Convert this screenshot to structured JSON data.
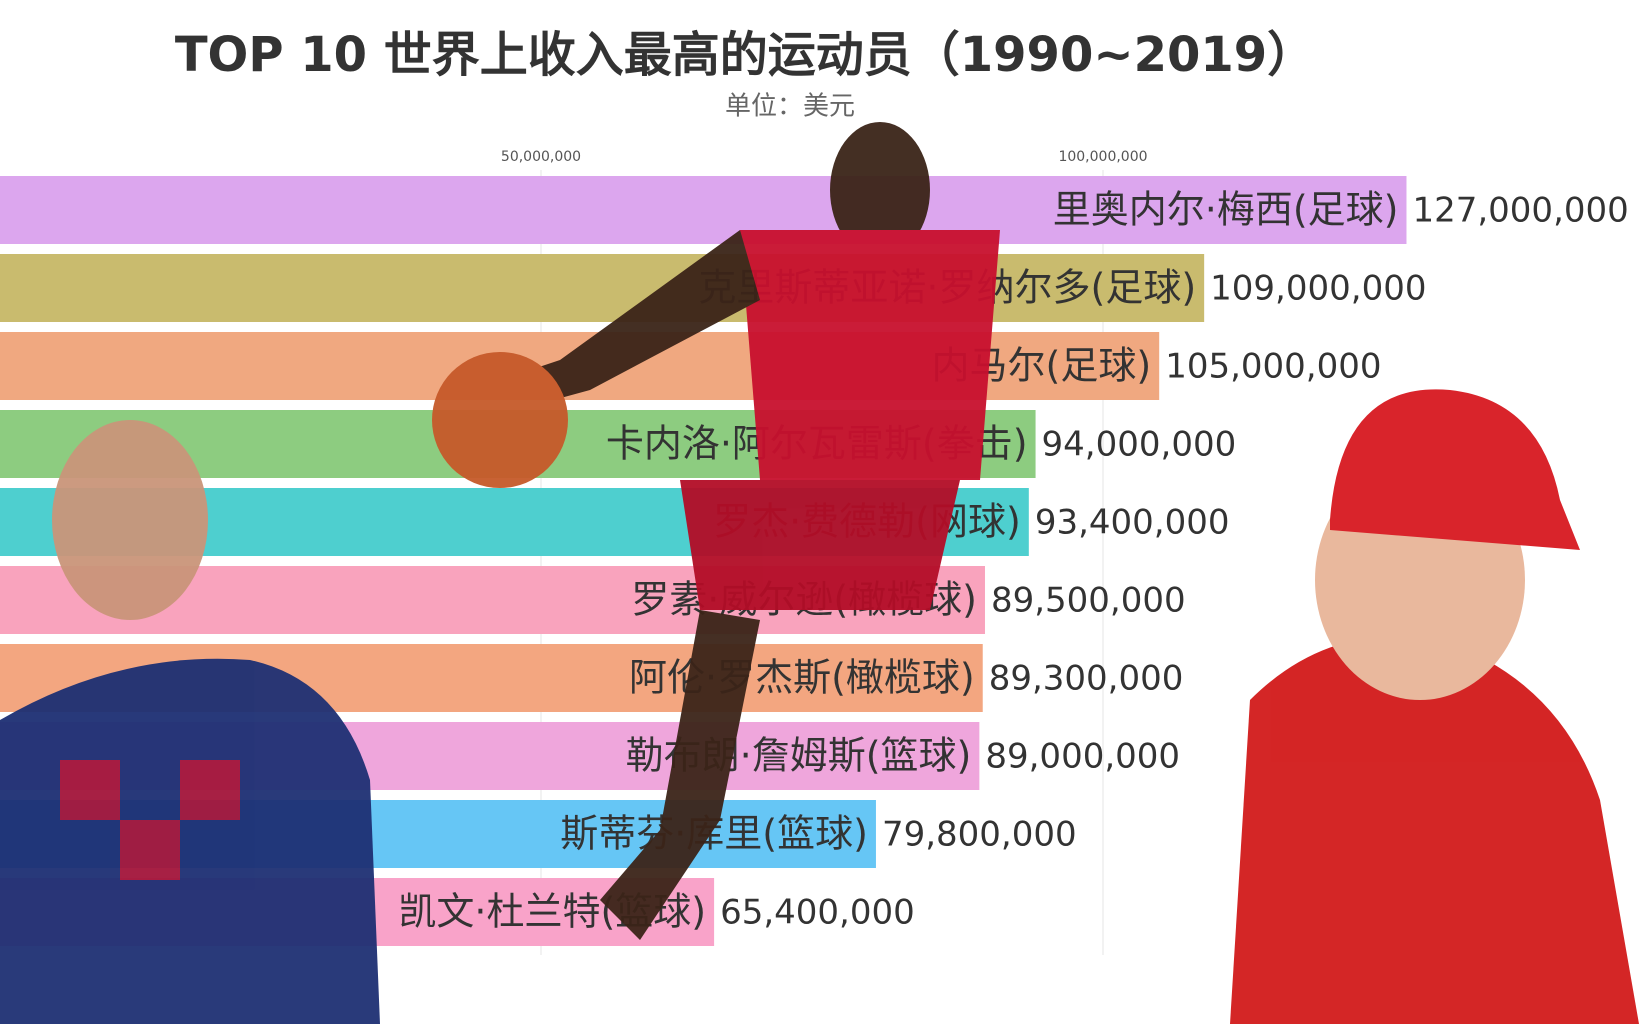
{
  "chart_data": {
    "type": "barh",
    "title": "TOP 10 世界上收入最高的运动员（1990~2019）",
    "subtitle": "单位：美元",
    "categories": [
      "里奥内尔·梅西(足球)",
      "克里斯蒂亚诺·罗纳尔多(足球)",
      "内马尔(足球)",
      "卡内洛·阿尔瓦雷斯(拳击)",
      "罗杰·费德勒(网球)",
      "罗素·威尔逊(橄榄球)",
      "阿伦·罗杰斯(橄榄球)",
      "勒布朗·詹姆斯(篮球)",
      "斯蒂芬·库里(篮球)",
      "凯文·杜兰特(篮球)"
    ],
    "values": [
      127000000,
      109000000,
      105000000,
      94000000,
      93400000,
      89500000,
      89300000,
      89000000,
      79800000,
      65400000
    ],
    "value_labels": [
      "127,000,000",
      "109,000,000",
      "105,000,000",
      "94,000,000",
      "93,400,000",
      "89,500,000",
      "89,300,000",
      "89,000,000",
      "79,800,000",
      "65,400,000"
    ],
    "colors": [
      "#dca6ee",
      "#c9bb6e",
      "#f0a880",
      "#8dcc80",
      "#4ecfcf",
      "#f9a3bd",
      "#f3a680",
      "#efa6dc",
      "#66c6f5",
      "#f9a3c9"
    ],
    "xlim": [
      0,
      150000000
    ],
    "xticks": [
      {
        "value": 50000000,
        "label": "50,000,000"
      },
      {
        "value": 100000000,
        "label": "100,000,000"
      }
    ],
    "grid": true
  }
}
